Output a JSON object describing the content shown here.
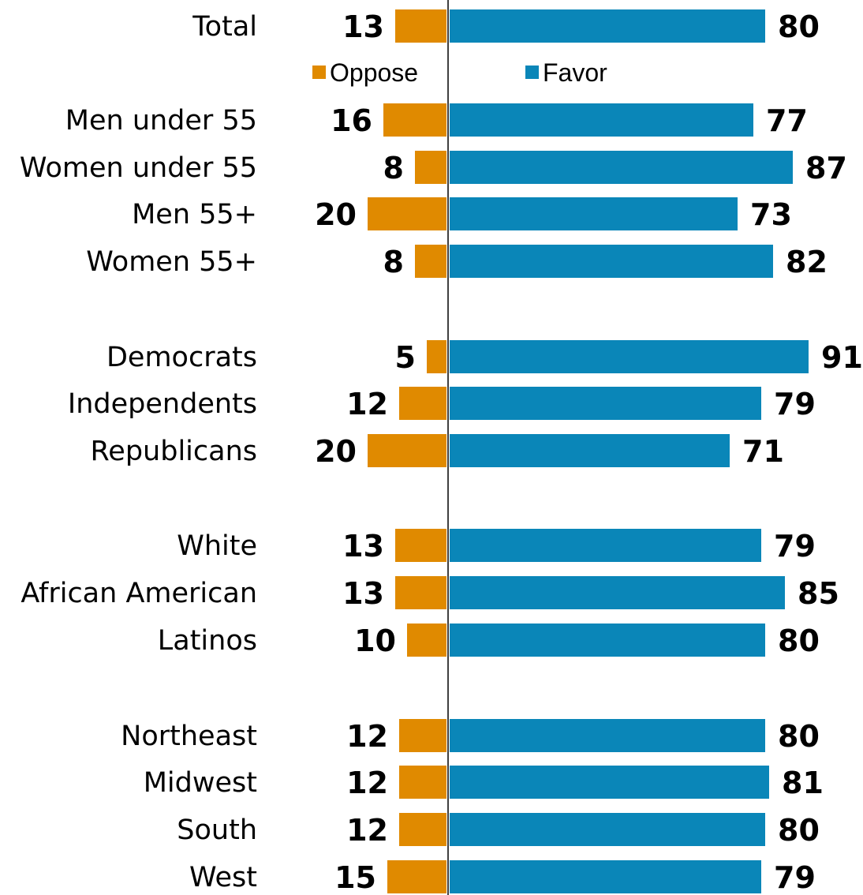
{
  "chart_data": {
    "type": "bar",
    "orientation": "horizontal-diverging",
    "categories": [
      "Total",
      "Men under 55",
      "Women under 55",
      "Men 55+",
      "Women 55+",
      "Democrats",
      "Independents",
      "Republicans",
      "White",
      "African American",
      "Latinos",
      "Northeast",
      "Midwest",
      "South",
      "West"
    ],
    "series": [
      {
        "name": "Oppose",
        "color": "#E08A00",
        "values": [
          13,
          16,
          8,
          20,
          8,
          5,
          12,
          20,
          13,
          13,
          10,
          12,
          12,
          12,
          15
        ]
      },
      {
        "name": "Favor",
        "color": "#0A86B8",
        "values": [
          80,
          77,
          87,
          73,
          82,
          91,
          79,
          71,
          79,
          85,
          80,
          80,
          81,
          80,
          79
        ]
      }
    ],
    "data_labels": true,
    "legend": {
      "position": "below-first-row",
      "entries": [
        "Oppose",
        "Favor"
      ]
    },
    "grid": false,
    "title": "",
    "xlabel": "",
    "ylabel": ""
  }
}
